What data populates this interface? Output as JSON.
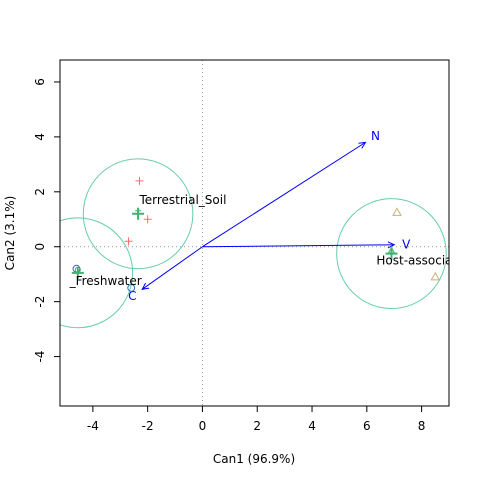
{
  "chart_data": {
    "type": "scatter",
    "title": "",
    "xlabel": "Can1 (96.9%)",
    "ylabel": "Can2 (3.1%)",
    "xlim": [
      -5.2,
      9.0
    ],
    "ylim": [
      -5.8,
      6.8
    ],
    "x_ticks": [
      -4,
      -2,
      0,
      2,
      4,
      6,
      8
    ],
    "y_ticks": [
      -4,
      -2,
      0,
      2,
      4,
      6
    ],
    "x_tick_labels": [
      "-4",
      "-2",
      "0",
      "2",
      "4",
      "6",
      "8"
    ],
    "y_tick_labels": [
      "-4",
      "-2",
      "0",
      "2",
      "4",
      "6"
    ],
    "reference_lines": {
      "x": 0,
      "y": 0
    },
    "grid": false,
    "groups": [
      {
        "name": "Terrestrial_Soil",
        "marker": "plus",
        "color": "#ff6b6b",
        "points": [
          {
            "x": -2.3,
            "y": 2.4
          },
          {
            "x": -2.0,
            "y": 1.0
          },
          {
            "x": -2.7,
            "y": 0.2
          }
        ],
        "centroid": {
          "x": -2.35,
          "y": 1.2
        },
        "circle_radius": 2.0,
        "label": "Terrestrial_Soil",
        "label_pos": {
          "x": -2.3,
          "y": 1.55
        }
      },
      {
        "name": "Freshwater",
        "marker": "circle",
        "color": "#1f77b4",
        "points": [
          {
            "x": -4.6,
            "y": -0.8
          },
          {
            "x": -2.6,
            "y": -1.5
          }
        ],
        "centroid": {
          "x": -4.55,
          "y": -0.95
        },
        "circle_radius": 2.0,
        "label": "_Freshwater",
        "label_pos": {
          "x": -4.85,
          "y": -1.4
        }
      },
      {
        "name": "Host-associated_Gastrointestinal",
        "marker": "triangle",
        "color": "#c8b07a",
        "points": [
          {
            "x": 7.1,
            "y": 1.25
          },
          {
            "x": 8.5,
            "y": -1.1
          }
        ],
        "centroid": {
          "x": 6.9,
          "y": -0.25
        },
        "circle_radius": 2.0,
        "label": "Host-associated_Gastrointesti",
        "label_pos": {
          "x": 6.35,
          "y": -0.65
        }
      }
    ],
    "vectors": [
      {
        "name": "N",
        "x": 5.95,
        "y": 3.8
      },
      {
        "name": "V",
        "x": 7.0,
        "y": 0.07
      },
      {
        "name": "C",
        "x": -2.2,
        "y": -1.55
      }
    ],
    "centroid_color": "#3cb371",
    "circle_color": "#66cdaa",
    "vector_color": "#0000ff"
  }
}
